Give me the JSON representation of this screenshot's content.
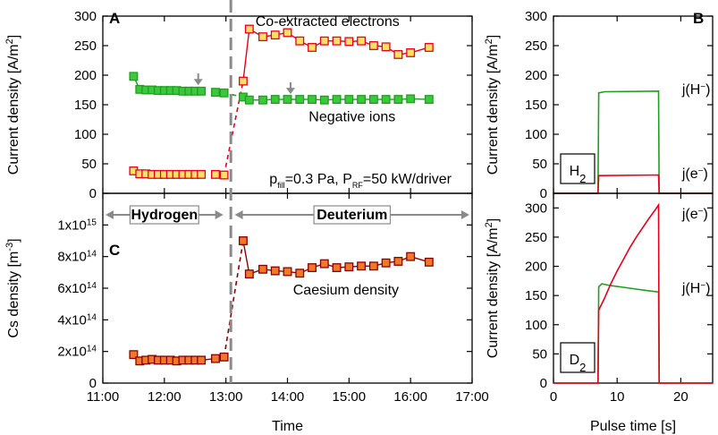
{
  "chart_data": [
    {
      "id": "A",
      "type": "scatter",
      "panel_label": "A",
      "ylabel": "Current density [A/m²]",
      "ylabel_parts": {
        "main": "Current density [A/m",
        "sup": "2",
        "end": "]"
      },
      "ylim": [
        0,
        300
      ],
      "yticks": [
        0,
        50,
        100,
        150,
        200,
        250,
        300
      ],
      "xlim": [
        11,
        17
      ],
      "annotation": {
        "p": "p",
        "p_sub": "fill",
        "p_val": "=0.3 Pa, ",
        "P": "P",
        "P_sub": "RF",
        "P_val": "=50 kW/driver"
      },
      "series": [
        {
          "name": "Co-extracted electrons",
          "color": "#e8001c",
          "marker_fill": "#ffe066",
          "x": [
            11.5,
            11.6,
            11.7,
            11.8,
            11.9,
            12.0,
            12.1,
            12.2,
            12.3,
            12.4,
            12.5,
            12.6,
            12.83,
            12.97,
            13.28,
            13.38,
            13.6,
            13.8,
            14.0,
            14.2,
            14.4,
            14.6,
            14.8,
            15.0,
            15.2,
            15.4,
            15.6,
            15.8,
            16.0,
            16.3
          ],
          "values": [
            38,
            33,
            33,
            32,
            32,
            32,
            32,
            32,
            32,
            32,
            32,
            32,
            32,
            31,
            190,
            278,
            265,
            268,
            272,
            258,
            247,
            258,
            258,
            257,
            258,
            250,
            248,
            235,
            238,
            247
          ],
          "dashed_segments": [
            [
              13,
              14
            ]
          ],
          "gaps": [
            [
              11,
              12
            ]
          ]
        },
        {
          "name": "Negative ions",
          "color": "#1ea01e",
          "marker_fill": "#3cc83c",
          "x": [
            11.5,
            11.6,
            11.7,
            11.8,
            11.9,
            12.0,
            12.1,
            12.2,
            12.3,
            12.4,
            12.5,
            12.6,
            12.83,
            12.97,
            13.28,
            13.38,
            13.6,
            13.8,
            14.0,
            14.2,
            14.4,
            14.6,
            14.8,
            15.0,
            15.2,
            15.4,
            15.6,
            15.8,
            16.0,
            16.3
          ],
          "values": [
            198,
            176,
            175,
            175,
            174,
            174,
            174,
            174,
            173,
            173,
            173,
            173,
            171,
            170,
            163,
            158,
            158,
            159,
            159,
            159,
            159,
            158,
            159,
            159,
            159,
            159,
            159,
            159,
            160,
            159
          ],
          "dashed_segments": [
            [
              13,
              14
            ]
          ],
          "gaps": [
            [
              11,
              12
            ]
          ]
        }
      ],
      "arrows": [
        {
          "x": 12.55,
          "y_top": 203,
          "y_bot": 183
        },
        {
          "x": 14.05,
          "y_top": 188,
          "y_bot": 168
        }
      ],
      "labels": [
        {
          "text": "Co-extracted electrons",
          "x": 14.65,
          "y": 283,
          "color": "#e8001c"
        },
        {
          "text": "Negative ions",
          "x": 15.05,
          "y": 122,
          "color": "#1ea01e"
        }
      ]
    },
    {
      "id": "C",
      "type": "scatter",
      "panel_label": "C",
      "ylabel": "Cs density [m⁻³]",
      "ylabel_parts": {
        "main": "Cs density [m",
        "sup": "-3",
        "end": "]"
      },
      "ylim": [
        0,
        1200000000000000.0
      ],
      "yticks": [
        0,
        200000000000000.0,
        400000000000000.0,
        600000000000000.0,
        800000000000000.0,
        1000000000000000.0
      ],
      "ytick_labels": [
        {
          "base": "0",
          "exp": ""
        },
        {
          "base": "2x10",
          "exp": "14"
        },
        {
          "base": "4x10",
          "exp": "14"
        },
        {
          "base": "6x10",
          "exp": "14"
        },
        {
          "base": "8x10",
          "exp": "14"
        },
        {
          "base": "1x10",
          "exp": "15"
        }
      ],
      "xlim": [
        11,
        17
      ],
      "xticks": [
        "11:00",
        "12:00",
        "13:00",
        "14:00",
        "15:00",
        "16:00",
        "17:00"
      ],
      "xlabel": "Time",
      "series": [
        {
          "name": "Caesium density",
          "color": "#8b0000",
          "marker_fill": "#f07828",
          "x": [
            11.5,
            11.6,
            11.7,
            11.8,
            11.9,
            12.0,
            12.1,
            12.2,
            12.3,
            12.4,
            12.5,
            12.6,
            12.83,
            12.97,
            13.28,
            13.38,
            13.6,
            13.8,
            14.0,
            14.2,
            14.4,
            14.6,
            14.8,
            15.0,
            15.2,
            15.4,
            15.6,
            15.8,
            16.0,
            16.3
          ],
          "values": [
            180000000000000.0,
            140000000000000.0,
            145000000000000.0,
            150000000000000.0,
            145000000000000.0,
            145000000000000.0,
            145000000000000.0,
            140000000000000.0,
            145000000000000.0,
            145000000000000.0,
            145000000000000.0,
            145000000000000.0,
            155000000000000.0,
            165000000000000.0,
            900000000000000.0,
            690000000000000.0,
            720000000000000.0,
            710000000000000.0,
            705000000000000.0,
            695000000000000.0,
            730000000000000.0,
            755000000000000.0,
            730000000000000.0,
            735000000000000.0,
            740000000000000.0,
            740000000000000.0,
            760000000000000.0,
            770000000000000.0,
            800000000000000.0,
            765000000000000.0
          ],
          "dashed_segments": [
            [
              13,
              14
            ]
          ],
          "gaps": []
        }
      ],
      "regions": [
        {
          "text": "Hydrogen",
          "from": 11.0,
          "to": 13.0
        },
        {
          "text": "Deuterium",
          "from": 13.1,
          "to": 17.0
        }
      ],
      "labels": [
        {
          "text": "Caesium density",
          "x": 14.95,
          "y": 560000000000000.0,
          "color": "#8b0000"
        }
      ],
      "divider_x": 13.08
    },
    {
      "id": "B",
      "type": "line",
      "panel_label": "B",
      "ylabel": "Current density [A/m²]",
      "ylabel_parts": {
        "main": "Current density [A/m",
        "sup": "2",
        "end": "]"
      },
      "ylim": [
        0,
        300
      ],
      "yticks": [
        0,
        50,
        100,
        150,
        200,
        250,
        300
      ],
      "xlim": [
        0,
        25
      ],
      "gas": {
        "base": "H",
        "sub": "2"
      },
      "series": [
        {
          "name": "j(H⁻)",
          "label_parts": [
            "j(H",
            "−",
            ")"
          ],
          "color": "#1ea01e",
          "x": [
            0,
            7.0,
            7.1,
            8.0,
            16.5,
            16.6,
            25
          ],
          "values": [
            0,
            0,
            170,
            172,
            173,
            0,
            0
          ]
        },
        {
          "name": "j(e⁻)",
          "label_parts": [
            "j(e",
            "−",
            ")"
          ],
          "color": "#e8001c",
          "x": [
            0,
            7.0,
            7.1,
            16.5,
            16.6,
            25
          ],
          "values": [
            0,
            0,
            30,
            31,
            0,
            0
          ]
        }
      ],
      "labels": [
        {
          "series": 0,
          "x": 20.2,
          "y": 168
        },
        {
          "series": 1,
          "x": 20.2,
          "y": 26
        }
      ]
    },
    {
      "id": "D",
      "type": "line",
      "panel_label": "",
      "ylabel": "Current density [A/m²]",
      "ylabel_parts": {
        "main": "Current density [A/m",
        "sup": "2",
        "end": "]"
      },
      "ylim": [
        0,
        325
      ],
      "yticks": [
        0,
        50,
        100,
        150,
        200,
        250,
        300
      ],
      "xlim": [
        0,
        25
      ],
      "xticks": [
        0,
        10,
        20
      ],
      "xlabel": "Pulse time [s]",
      "gas": {
        "base": "D",
        "sub": "2"
      },
      "series": [
        {
          "name": "j(H⁻)",
          "label_parts": [
            "j(H",
            "−",
            ")"
          ],
          "color": "#1ea01e",
          "x": [
            0,
            7.0,
            7.1,
            7.6,
            9,
            11,
            13,
            15,
            16.5,
            16.6,
            25
          ],
          "values": [
            0,
            0,
            165,
            170,
            167,
            164,
            161,
            158,
            156,
            0,
            0
          ]
        },
        {
          "name": "j(e⁻)",
          "label_parts": [
            "j(e",
            "−",
            ")"
          ],
          "color": "#e8001c",
          "x": [
            0,
            7.0,
            7.1,
            8,
            9,
            10,
            11,
            12,
            13,
            14,
            15,
            16,
            16.5,
            16.6,
            25
          ],
          "values": [
            0,
            0,
            125,
            145,
            170,
            192,
            212,
            232,
            250,
            266,
            282,
            297,
            305,
            0,
            0
          ]
        }
      ],
      "labels": [
        {
          "series": 1,
          "x": 20.2,
          "y": 282
        },
        {
          "series": 0,
          "x": 20.2,
          "y": 155
        }
      ]
    }
  ]
}
